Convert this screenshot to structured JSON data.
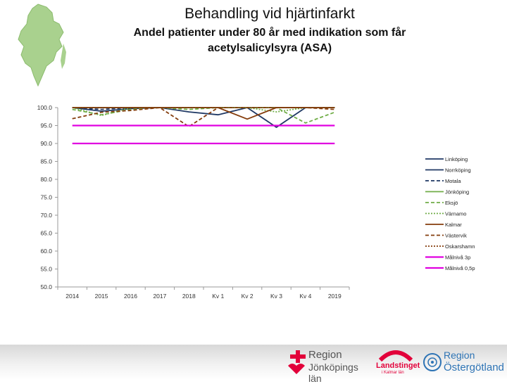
{
  "header": {
    "title": "Behandling vid hjärtinfarkt",
    "subtitle": "Andel patienter  under 80 år med indikation som får acetylsalicylsyra (ASA)"
  },
  "chart_data": {
    "type": "line",
    "title": "",
    "xlabel": "",
    "ylabel": "",
    "ylim": [
      50,
      100
    ],
    "yticks": [
      "100.0",
      "95.0",
      "90.0",
      "85.0",
      "80.0",
      "75.0",
      "70.0",
      "65.0",
      "60.0",
      "55.0",
      "50.0"
    ],
    "categories": [
      "2014",
      "2015",
      "2016",
      "2017",
      "2018",
      "Kv 1",
      "Kv 2",
      "Kv 3",
      "Kv 4",
      "2019"
    ],
    "legend_position": "right",
    "grid": false,
    "series": [
      {
        "name": "Linköping",
        "color": "#1f3864",
        "dash": "solid",
        "values": [
          100,
          99,
          99.7,
          100,
          98.8,
          98,
          100,
          94.5,
          100,
          100
        ]
      },
      {
        "name": "Norrköping",
        "color": "#1f3864",
        "dash": "solid",
        "values": [
          100,
          100,
          100,
          100,
          100,
          100,
          100,
          100,
          100,
          100
        ]
      },
      {
        "name": "Motala",
        "color": "#1f3864",
        "dash": "dashed",
        "values": [
          100,
          99.5,
          100,
          100,
          100,
          100,
          100,
          100,
          100,
          100
        ]
      },
      {
        "name": "Jönköping",
        "color": "#70ad47",
        "dash": "solid",
        "values": [
          100,
          100,
          100,
          100,
          100,
          100,
          100,
          100,
          100,
          100
        ]
      },
      {
        "name": "Eksjö",
        "color": "#70ad47",
        "dash": "dashed",
        "values": [
          99.5,
          98,
          99.5,
          100,
          99.5,
          100,
          100,
          100,
          95.7,
          98.7
        ]
      },
      {
        "name": "Värnamo",
        "color": "#70ad47",
        "dash": "dotted",
        "values": [
          100,
          97.8,
          100,
          100,
          100,
          100,
          100,
          98.8,
          100,
          100
        ]
      },
      {
        "name": "Kalmar",
        "color": "#843c0c",
        "dash": "solid",
        "values": [
          100,
          100,
          100,
          100,
          100,
          100,
          96.8,
          100,
          100,
          100
        ]
      },
      {
        "name": "Västervik",
        "color": "#843c0c",
        "dash": "dashed",
        "values": [
          96.9,
          98.7,
          99.2,
          100,
          94.7,
          100,
          100,
          100,
          100,
          99.5
        ]
      },
      {
        "name": "Oskarshamn",
        "color": "#843c0c",
        "dash": "dotted",
        "values": [
          100,
          100,
          100,
          100,
          100,
          100,
          100,
          100,
          100,
          100
        ]
      },
      {
        "name": "Målnivå 3p",
        "color": "#e000e0",
        "dash": "solid",
        "width": 2.2,
        "values": [
          95,
          95,
          95,
          95,
          95,
          95,
          95,
          95,
          95,
          95
        ]
      },
      {
        "name": "Målnivå 0,5p",
        "color": "#e000e0",
        "dash": "solid",
        "width": 2.2,
        "values": [
          90,
          90,
          90,
          90,
          90,
          90,
          90,
          90,
          90,
          90
        ]
      }
    ]
  },
  "footer": {
    "logo_jonkoping": {
      "line1": "Region",
      "line2": "Jönköpings län"
    },
    "logo_kalmar": {
      "line1": "Landstinget",
      "line2": "i Kalmar län"
    },
    "logo_ostergotland": {
      "line1": "Region",
      "line2": "Östergötland"
    }
  }
}
